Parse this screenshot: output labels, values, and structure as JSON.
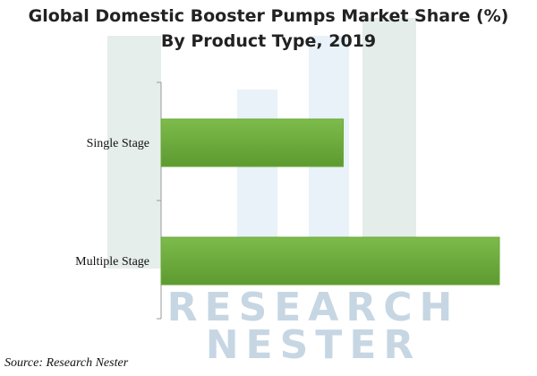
{
  "chart_data": {
    "type": "hbar",
    "title": "Global Domestic Booster Pumps Market Share (%)",
    "subtitle": "By Product Type, 2019",
    "categories": [
      "Single Stage",
      "Multiple Stage"
    ],
    "values": [
      35,
      65
    ],
    "color": "#6aa83a",
    "source": "Source: Research Nester"
  },
  "watermark": [
    "RESEARCH",
    "NESTER"
  ]
}
